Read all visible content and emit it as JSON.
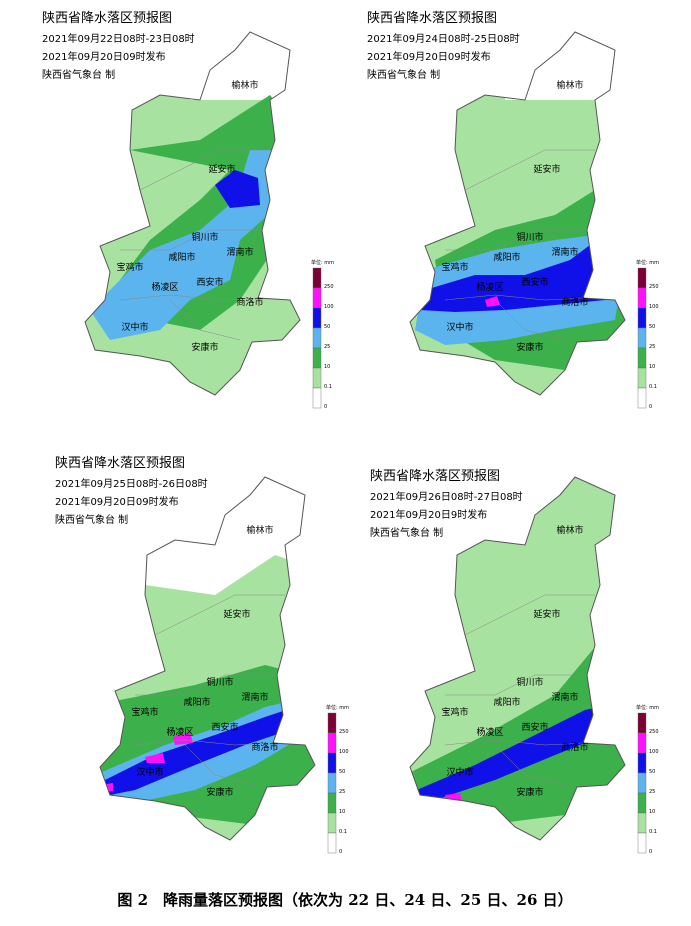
{
  "panels": [
    {
      "title": "陕西省降水落区预报图",
      "period": "2021年09月22日08时-23日08时",
      "issued": "2021年09月20日09时发布",
      "agency": "陕西省气象台 制",
      "cities": [
        "榆林市",
        "延安市",
        "铜川市",
        "宝鸡市",
        "咸阳市",
        "渭南市",
        "杨凌区",
        "西安市",
        "商洛市",
        "汉中市",
        "安康市"
      ],
      "legend": {
        "unit": "单位: mm",
        "labels": [
          "250",
          "100",
          "50",
          "25",
          "10",
          "0.1",
          "0"
        ]
      }
    },
    {
      "title": "陕西省降水落区预报图",
      "period": "2021年09月24日08时-25日08时",
      "issued": "2021年09月20日09时发布",
      "agency": "陕西省气象台 制",
      "cities": [
        "榆林市",
        "延安市",
        "铜川市",
        "宝鸡市",
        "咸阳市",
        "渭南市",
        "杨凌区",
        "西安市",
        "商洛市",
        "汉中市",
        "安康市"
      ],
      "legend": {
        "unit": "单位: mm",
        "labels": [
          "250",
          "100",
          "50",
          "25",
          "10",
          "0.1",
          "0"
        ]
      }
    },
    {
      "title": "陕西省降水落区预报图",
      "period": "2021年09月25日08时-26日08时",
      "issued": "2021年09月20日09时发布",
      "agency": "陕西省气象台 制",
      "cities": [
        "榆林市",
        "延安市",
        "铜川市",
        "宝鸡市",
        "咸阳市",
        "渭南市",
        "杨凌区",
        "西安市",
        "商洛市",
        "汉中市",
        "安康市"
      ],
      "legend": {
        "unit": "单位: mm",
        "labels": [
          "250",
          "100",
          "50",
          "25",
          "10",
          "0.1",
          "0"
        ]
      }
    },
    {
      "title": "陕西省降水落区预报图",
      "period": "2021年09月26日08时-27日08时",
      "issued": "2021年09月20日9时发布",
      "agency": "陕西省气象台 制",
      "cities": [
        "榆林市",
        "延安市",
        "铜川市",
        "宝鸡市",
        "咸阳市",
        "渭南市",
        "杨凌区",
        "西安市",
        "商洛市",
        "汉中市",
        "安康市"
      ],
      "legend": {
        "unit": "单位: mm",
        "labels": [
          "250",
          "100",
          "50",
          "25",
          "10",
          "0.1",
          "0"
        ]
      }
    }
  ],
  "caption": "图 2　降雨量落区预报图（依次为 22 日、24 日、25 日、26 日）"
}
